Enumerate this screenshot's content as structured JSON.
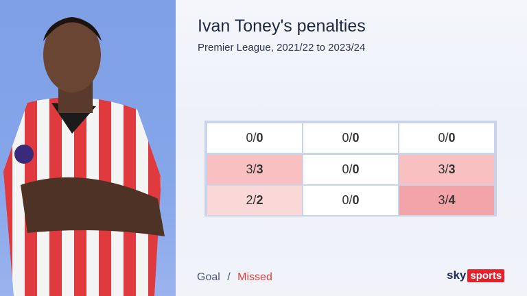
{
  "header": {
    "title": "Ivan Toney's penalties",
    "subtitle": "Premier League, 2021/22 to 2023/24"
  },
  "grid": {
    "separator": "/",
    "rows": [
      [
        {
          "goals": 0,
          "taken": 0,
          "color": "#ffffff"
        },
        {
          "goals": 0,
          "taken": 0,
          "color": "#ffffff"
        },
        {
          "goals": 0,
          "taken": 0,
          "color": "#ffffff"
        }
      ],
      [
        {
          "goals": 3,
          "taken": 3,
          "color": "#f8c0c0"
        },
        {
          "goals": 0,
          "taken": 0,
          "color": "#ffffff"
        },
        {
          "goals": 3,
          "taken": 3,
          "color": "#f8c0c0"
        }
      ],
      [
        {
          "goals": 2,
          "taken": 2,
          "color": "#fbd8d8"
        },
        {
          "goals": 0,
          "taken": 0,
          "color": "#ffffff"
        },
        {
          "goals": 3,
          "taken": 4,
          "color": "#f3a4a8"
        }
      ]
    ]
  },
  "legend": {
    "goal": "Goal",
    "separator": "/",
    "missed": "Missed"
  },
  "logo": {
    "sky": "sky",
    "sports": "sports"
  }
}
